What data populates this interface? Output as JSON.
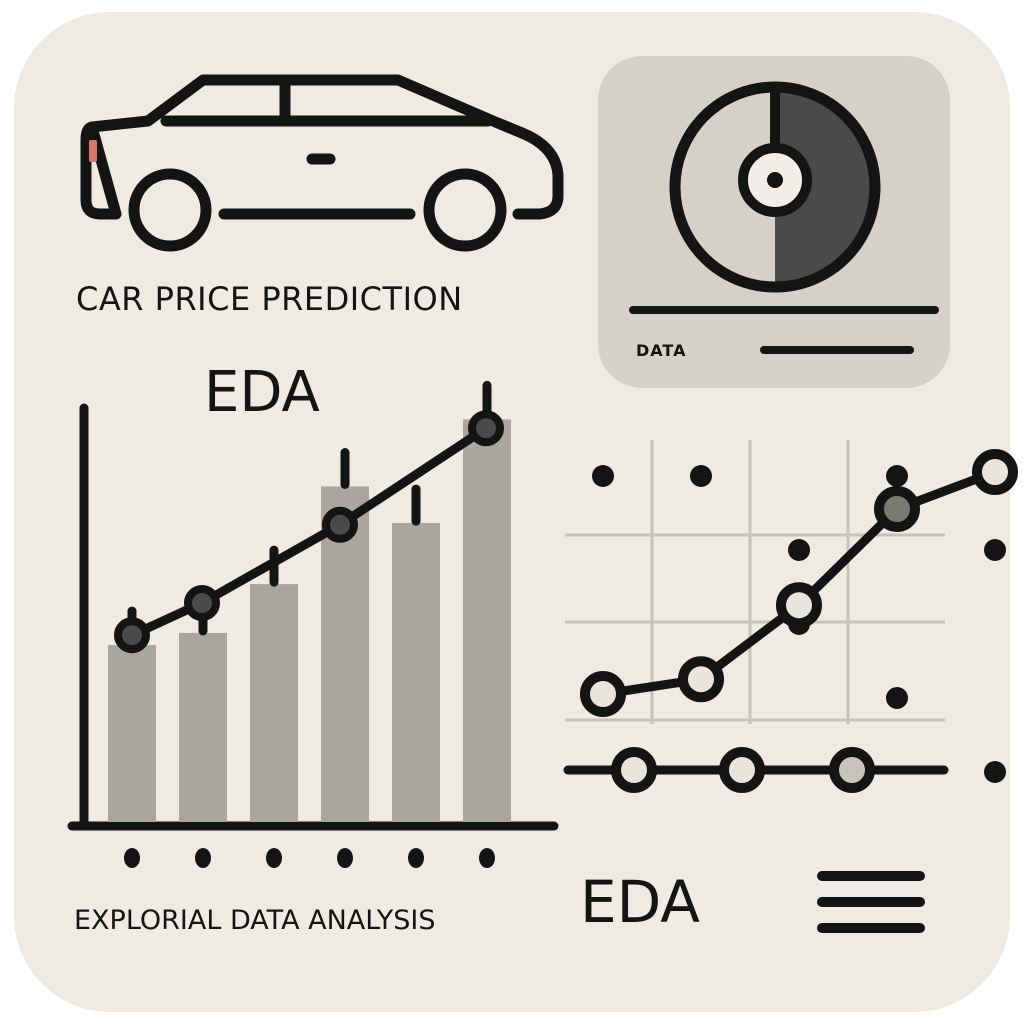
{
  "texts": {
    "title": "CAR PRICE PREDICTION",
    "eda_top": "EDA",
    "eda_bottom": "EDA",
    "subtitle": "EXPLORIAL DATA ANALYSIS",
    "data_label": "DATA"
  },
  "colors": {
    "background": "#efebe3",
    "panel": "#d6d1c8",
    "bar": "#a9a69f",
    "ink": "#141414",
    "dark_segment": "#4a4a48",
    "grid": "#c7c3bb",
    "accent_red": "#d9776f"
  },
  "icons": [
    "car-icon",
    "pie-chart-icon",
    "menu-icon"
  ],
  "chart_data": [
    {
      "type": "bar",
      "values": [
        2.9,
        3.1,
        3.9,
        5.5,
        4.9,
        6.6
      ],
      "line_values": [
        3.8,
        4.5,
        6.2,
        8.3
      ],
      "title": "",
      "xlabel": "",
      "ylabel": ""
    },
    {
      "type": "scatter",
      "scatter_points": [
        [
          1,
          6
        ],
        [
          2,
          6
        ],
        [
          3,
          5
        ],
        [
          4,
          6
        ],
        [
          3,
          4
        ],
        [
          5,
          5
        ],
        [
          4,
          3
        ],
        [
          5,
          2
        ]
      ],
      "line_points": [
        [
          1,
          3
        ],
        [
          2,
          3.2
        ],
        [
          3,
          4.2
        ],
        [
          4,
          5.5
        ],
        [
          5,
          6
        ]
      ],
      "title": "",
      "xlabel": "",
      "ylabel": ""
    }
  ]
}
